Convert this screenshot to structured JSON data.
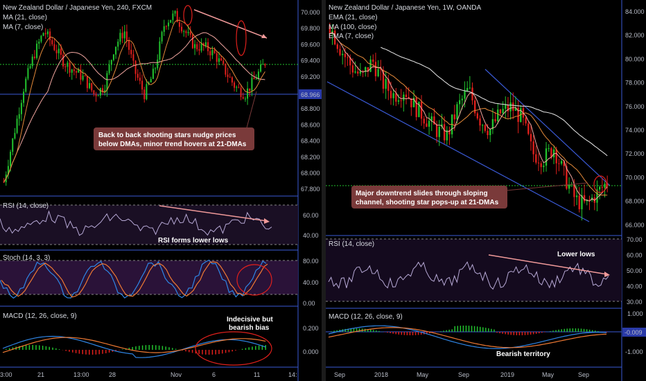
{
  "colors": {
    "up": "#22c32e",
    "down": "#e0201c",
    "ma_orange": "#e58a3a",
    "ma_pink": "#f2a6a0",
    "ma_white": "#e9e9e9",
    "macd_line": "#2f86e6",
    "signal_line": "#f07a33",
    "rsi_line": "#b7a9d6",
    "annotation_bg": "#7a3a3a",
    "trend_arrow": "#f19a9a",
    "last_price_line": "#1f7a30"
  },
  "left": {
    "title": "New Zealand Dollar / Japanese Yen, 240, FXCM",
    "legend": [
      "MA (21, close)",
      "MA (7, close)"
    ],
    "price_axis": [
      "70.000",
      "69.800",
      "69.600",
      "69.400",
      "69.200",
      "69.000",
      "68.800",
      "68.600",
      "68.400",
      "68.200",
      "68.000",
      "67.800"
    ],
    "last_price": "68.966",
    "annotation": [
      "Back to back shooting stars nudge prices",
      "below DMAs, minor trend hovers at 21-DMAs"
    ],
    "rsi": {
      "title": "RSI (14, close)",
      "axis": [
        "60.00",
        "40.00"
      ],
      "note": "RSI forms lower lows"
    },
    "stoch": {
      "title": "Stoch (14, 3, 3)",
      "axis": [
        "80.00",
        "40.00",
        "0.00"
      ]
    },
    "macd": {
      "title": "MACD (12, 26, close, 9)",
      "axis": [
        "0.200",
        "0.000"
      ],
      "note": [
        "Indecisive but",
        "bearish bias"
      ]
    },
    "time_axis": [
      "3:00",
      "21",
      "13:00",
      "28",
      "Nov",
      "6",
      "11",
      "14:"
    ]
  },
  "right": {
    "title": "New Zealand Dollar / Japanese Yen, 1W, OANDA",
    "legend": [
      "EMA (21, close)",
      "MA (100, close)",
      "EMA (7, close)"
    ],
    "price_axis": [
      "84.000",
      "82.000",
      "80.000",
      "78.000",
      "76.000",
      "74.000",
      "72.000",
      "70.000",
      "68.000",
      "66.000"
    ],
    "annotation": [
      "Major downtrend slides through sloping",
      "channel, shooting star pops-up at 21-DMAs"
    ],
    "rsi": {
      "title": "RSI (14, close)",
      "axis": [
        "70.00",
        "60.00",
        "50.00",
        "40.00",
        "30.00"
      ],
      "note": "Lower lows"
    },
    "macd": {
      "title": "MACD (12, 26, close, 9)",
      "axis": [
        "1.000",
        "-0.009",
        "-1.000"
      ],
      "note": "Bearish territory"
    },
    "time_axis": [
      "Sep",
      "2018",
      "May",
      "Sep",
      "2019",
      "May",
      "Sep"
    ]
  },
  "chart_data": [
    {
      "type": "candlestick",
      "title": "New Zealand Dollar / Japanese Yen, 240, FXCM",
      "ylim": [
        67.75,
        70.1
      ],
      "series": [
        {
          "name": "MA (21, close)",
          "values": [
            68.2,
            68.55,
            68.9,
            69.2,
            69.4,
            69.5,
            69.45,
            69.35,
            69.25,
            69.2,
            69.3,
            69.5,
            69.6,
            69.7,
            69.65,
            69.5,
            69.35,
            69.3
          ]
        },
        {
          "name": "MA (7, close)",
          "values": [
            68.4,
            69.0,
            69.5,
            69.7,
            69.5,
            69.3,
            69.2,
            69.1,
            69.1,
            69.4,
            69.6,
            69.8,
            69.7,
            69.9,
            69.6,
            69.4,
            69.1,
            69.3
          ]
        }
      ],
      "candles_close": [
        67.9,
        68.5,
        69.1,
        69.5,
        69.8,
        69.6,
        69.4,
        69.3,
        69.2,
        69.0,
        69.1,
        69.6,
        69.8,
        69.3,
        69.0,
        69.3,
        69.9,
        70.0,
        69.8,
        69.6,
        69.6,
        69.5,
        69.3,
        69.1,
        69.0,
        69.2,
        69.4
      ]
    },
    {
      "type": "candlestick",
      "title": "New Zealand Dollar / Japanese Yen, 1W, OANDA",
      "ylim": [
        65.5,
        84.5
      ],
      "series": [
        {
          "name": "EMA (21, close)",
          "values": [
            82,
            80.5,
            79.5,
            78.5,
            78,
            77.5,
            77,
            76,
            75.5,
            75,
            74.5,
            75,
            75.5,
            75,
            73,
            71,
            70,
            69.3
          ]
        },
        {
          "name": "MA (100, close)",
          "values": [
            78.5,
            78.3,
            78.2,
            78.0,
            77.9,
            77.8,
            77.6,
            77.3,
            77.0,
            76.6,
            76.2,
            75.8,
            75.3,
            74.9,
            74.5
          ]
        },
        {
          "name": "EMA (7, close)",
          "values": [
            81,
            79,
            78.5,
            77.5,
            77,
            76,
            75.5,
            74.5,
            74,
            75,
            76,
            75,
            72,
            70,
            68,
            68.5,
            69.5
          ]
        }
      ],
      "candles_close": [
        83,
        81,
        79.5,
        78.5,
        80,
        78,
        77,
        77.5,
        76,
        75,
        74,
        73.5,
        76,
        77.5,
        75,
        74,
        75.5,
        76,
        75,
        72,
        71.5,
        72.5,
        70,
        68,
        67.5,
        68.5,
        69.5
      ]
    }
  ]
}
